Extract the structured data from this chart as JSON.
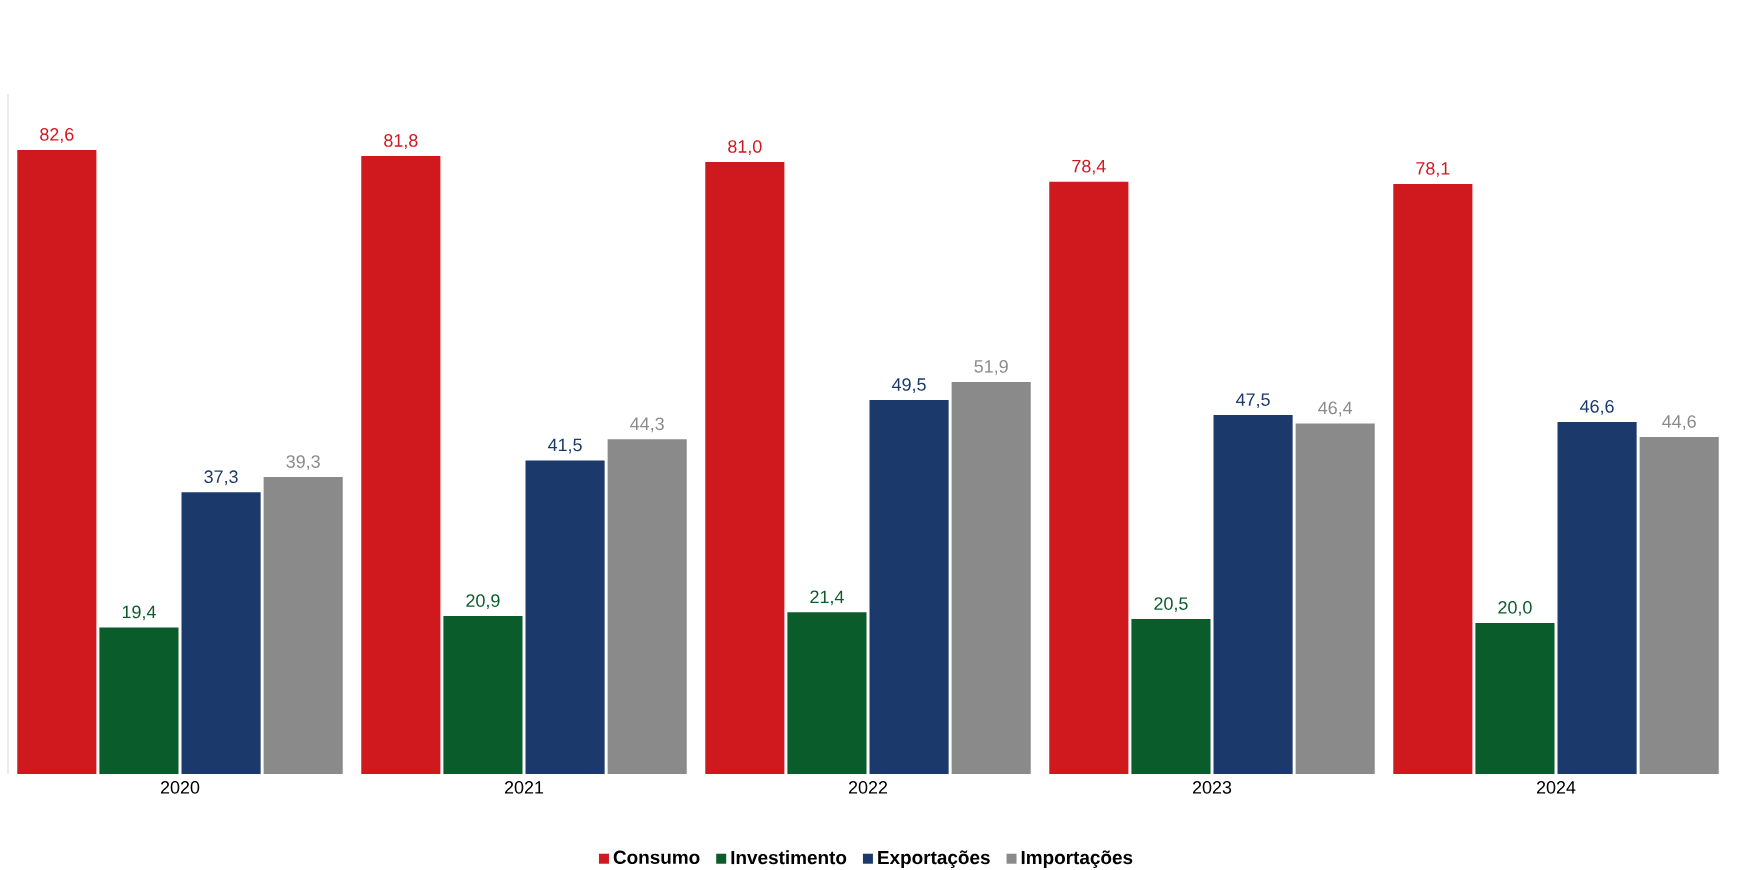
{
  "chart_data": {
    "type": "bar",
    "categories": [
      "2020",
      "2021",
      "2022",
      "2023",
      "2024"
    ],
    "series": [
      {
        "name": "Consumo",
        "color": "#d0181f",
        "values": [
          82.6,
          81.8,
          81.0,
          78.4,
          78.1
        ],
        "value_labels": [
          "82,6",
          "81,8",
          "81,0",
          "78,4",
          "78,1"
        ]
      },
      {
        "name": "Investimento",
        "color": "#0b5c2b",
        "values": [
          19.4,
          20.9,
          21.4,
          20.5,
          20.0
        ],
        "value_labels": [
          "19,4",
          "20,9",
          "21,4",
          "20,5",
          "20,0"
        ]
      },
      {
        "name": "Exportações",
        "color": "#1b3a6b",
        "values": [
          37.3,
          41.5,
          49.5,
          47.5,
          46.6
        ],
        "value_labels": [
          "37,3",
          "41,5",
          "49,5",
          "47,5",
          "46,6"
        ]
      },
      {
        "name": "Importações",
        "color": "#8a8a8a",
        "values": [
          39.3,
          44.3,
          51.9,
          46.4,
          44.6
        ],
        "value_labels": [
          "39,3",
          "44,3",
          "51,9",
          "46,4",
          "44,6"
        ]
      }
    ],
    "ylim": [
      0,
      90
    ],
    "tick_labels": "x",
    "legend": "bottom",
    "marker": "square",
    "grid": false
  }
}
